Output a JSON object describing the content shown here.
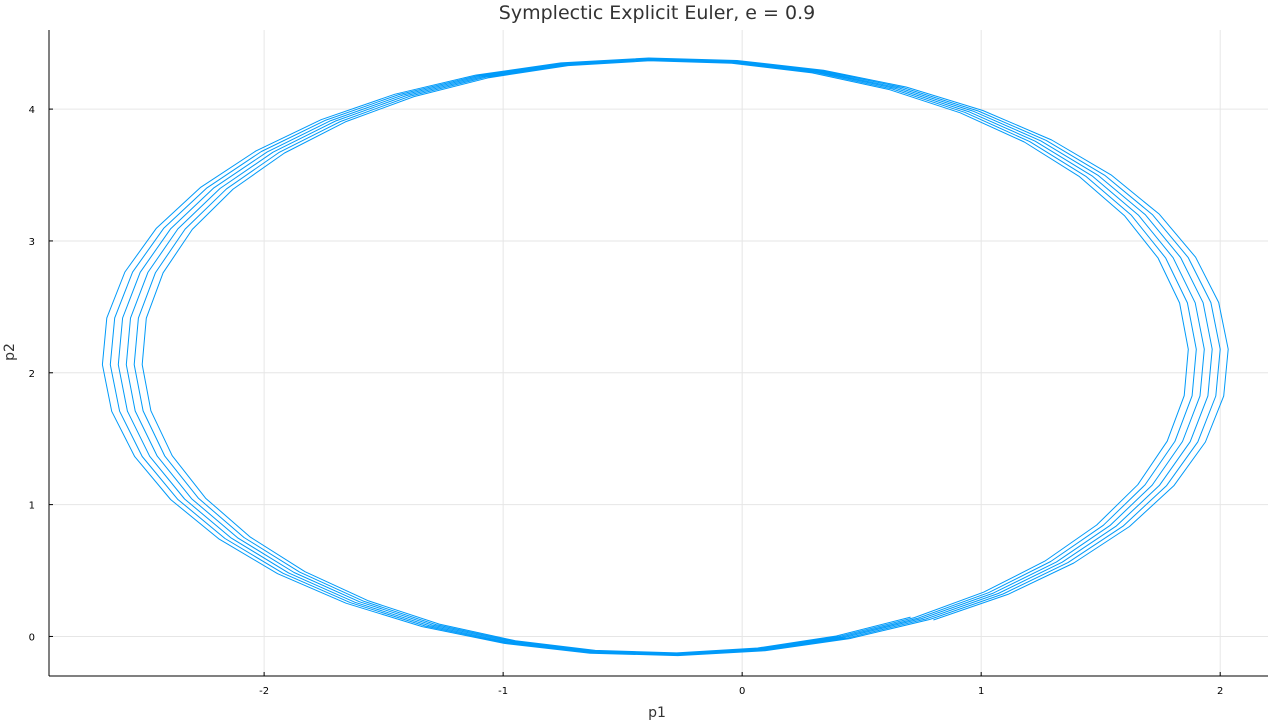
{
  "chart_data": {
    "type": "line",
    "title": "Symplectic Explicit Euler, e = 0.9",
    "xlabel": "p1",
    "ylabel": "p2",
    "xlim": [
      -2.9,
      2.2
    ],
    "ylim": [
      -0.3,
      4.6
    ],
    "xticks": [
      -2,
      -1,
      0,
      1,
      2
    ],
    "yticks": [
      0,
      1,
      2,
      3,
      4
    ],
    "grid": true,
    "legend": "none",
    "series": [
      {
        "color": "#009af9",
        "orbits": 6,
        "center": [
          -0.33,
          2.12
        ],
        "semi_axis_p1": [
          2.37,
          2.33,
          2.29,
          2.25,
          2.21,
          2.17
        ],
        "semi_axis_p2": [
          2.27,
          2.265,
          2.26,
          2.255,
          2.25,
          2.245
        ],
        "start": [
          0.82,
          0.09
        ],
        "points_per_orbit": 40
      }
    ]
  }
}
